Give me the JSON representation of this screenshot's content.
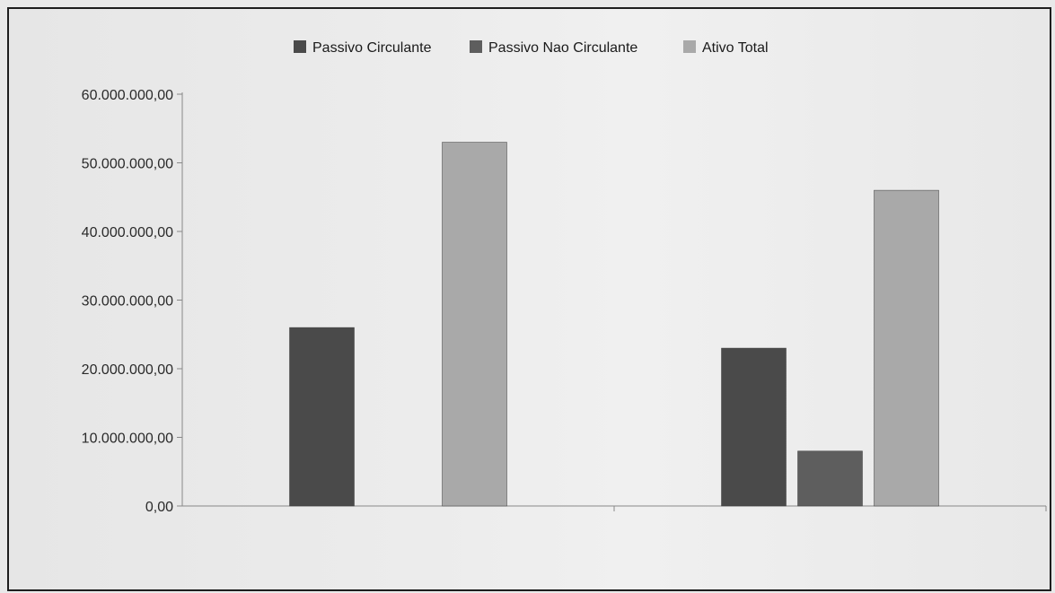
{
  "chart_data": {
    "type": "bar",
    "categories": [
      "",
      ""
    ],
    "series": [
      {
        "name": "Passivo Circulante",
        "color": "#4a4a4a",
        "values": [
          26000000,
          23000000
        ]
      },
      {
        "name": "Passivo Nao Circulante",
        "color": "#5e5e5e",
        "values": [
          0,
          8000000
        ]
      },
      {
        "name": "Ativo Total",
        "color": "#a9a9a9",
        "values": [
          53000000,
          46000000
        ]
      }
    ],
    "yticks": [
      "0,00",
      "10.000.000,00",
      "20.000.000,00",
      "30.000.000,00",
      "40.000.000,00",
      "50.000.000,00",
      "60.000.000,00"
    ],
    "ylim": [
      0,
      60000000
    ],
    "legend_position": "top-center",
    "grid": false
  }
}
